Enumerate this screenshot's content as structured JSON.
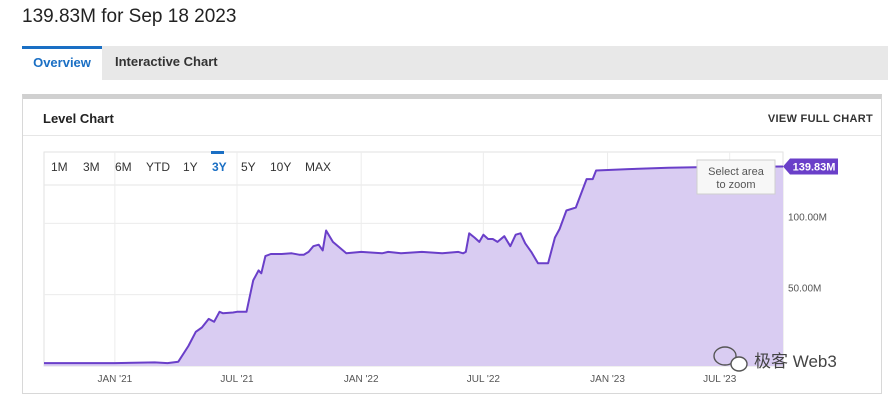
{
  "headline": "139.83M for Sep 18 2023",
  "tabs": [
    {
      "label": "Overview",
      "active": true
    },
    {
      "label": "Interactive Chart",
      "active": false
    }
  ],
  "panel": {
    "title": "Level Chart",
    "view_full_label": "VIEW FULL CHART"
  },
  "range_buttons": [
    "1M",
    "3M",
    "6M",
    "YTD",
    "1Y",
    "3Y",
    "5Y",
    "10Y",
    "MAX"
  ],
  "active_range": "3Y",
  "zoom_hint": [
    "Select area",
    "to zoom"
  ],
  "watermark": "极客 Web3",
  "colors": {
    "accent": "#1a6fc4",
    "line": "#6a3fc9",
    "fill": "#d9ccf2",
    "badge": "#6a3fc9"
  },
  "chart_data": {
    "type": "area",
    "x_ticks": [
      "JAN '21",
      "JUL '21",
      "JAN '22",
      "JUL '22",
      "JAN '23",
      "JUL '23"
    ],
    "y_ticks": [
      "50.00M",
      "100.00M"
    ],
    "ylim": [
      0,
      150
    ],
    "y_unit": "M",
    "last_value_label": "139.83M",
    "grid": true,
    "x": [
      "2020-09-18",
      "2020-11-01",
      "2021-01-01",
      "2021-03-01",
      "2021-03-20",
      "2021-04-05",
      "2021-04-20",
      "2021-05-01",
      "2021-05-10",
      "2021-05-20",
      "2021-05-28",
      "2021-06-05",
      "2021-06-10",
      "2021-06-25",
      "2021-07-01",
      "2021-07-15",
      "2021-07-25",
      "2021-08-02",
      "2021-08-06",
      "2021-08-12",
      "2021-08-20",
      "2021-09-05",
      "2021-09-20",
      "2021-10-01",
      "2021-10-08",
      "2021-10-15",
      "2021-10-22",
      "2021-10-30",
      "2021-11-05",
      "2021-11-10",
      "2021-11-20",
      "2021-12-10",
      "2022-01-01",
      "2022-02-01",
      "2022-02-10",
      "2022-03-01",
      "2022-04-01",
      "2022-05-01",
      "2022-05-25",
      "2022-06-01",
      "2022-06-05",
      "2022-06-10",
      "2022-06-18",
      "2022-06-25",
      "2022-07-01",
      "2022-07-08",
      "2022-07-15",
      "2022-07-22",
      "2022-08-01",
      "2022-08-10",
      "2022-08-18",
      "2022-08-25",
      "2022-09-01",
      "2022-09-10",
      "2022-09-20",
      "2022-10-05",
      "2022-10-15",
      "2022-10-22",
      "2022-11-01",
      "2022-11-15",
      "2022-12-01",
      "2022-12-10",
      "2022-12-15",
      "2023-02-01",
      "2023-04-01",
      "2023-06-01",
      "2023-08-01",
      "2023-09-18"
    ],
    "series": [
      {
        "values": [
          2,
          2,
          2,
          2.5,
          2,
          3,
          14,
          24,
          27,
          33,
          31,
          38,
          37,
          37.5,
          38,
          38,
          60,
          67,
          65,
          77,
          78.5,
          78.5,
          79,
          78,
          78,
          80,
          84,
          85,
          81,
          95,
          87,
          79,
          80,
          79,
          80,
          79,
          80,
          79,
          80,
          79,
          80,
          93,
          90,
          87,
          92,
          89,
          89,
          87,
          91,
          84,
          92,
          93,
          86,
          80,
          72,
          72,
          90,
          96,
          109,
          111,
          131,
          131,
          137,
          138,
          139,
          139.5,
          139.8,
          139.83
        ]
      }
    ]
  }
}
